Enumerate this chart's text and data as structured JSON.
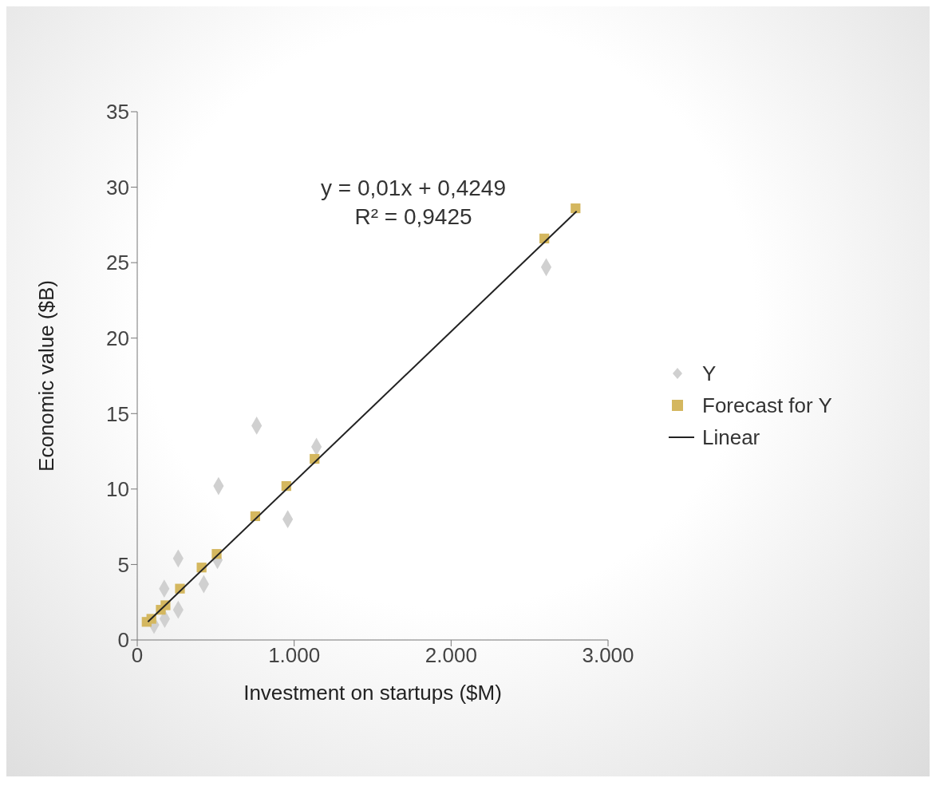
{
  "chart_data": {
    "type": "scatter",
    "xlabel": "Investment on startups ($M)",
    "ylabel": "Economic value ($B)",
    "annotations": [
      "y = 0,01x + 0,4249",
      "R² = 0,9425"
    ],
    "xlim": [
      0,
      3000
    ],
    "ylim": [
      0,
      35
    ],
    "xticks": [
      0,
      {
        "value": 1000,
        "label": "1.000"
      },
      {
        "value": 2000,
        "label": "2.000"
      },
      {
        "value": 3000,
        "label": "3.000"
      }
    ],
    "yticks": [
      0,
      5,
      10,
      15,
      20,
      25,
      30,
      35
    ],
    "grid": false,
    "legend": "right",
    "series": [
      {
        "name": "Y",
        "marker": "diamond",
        "color": "#d0d0d0",
        "x": [
          2606,
          761,
          1142,
          518,
          959,
          261,
          424,
          511,
          261,
          172,
          159,
          107,
          175
        ],
        "values": [
          24.7,
          14.2,
          12.8,
          10.2,
          8.0,
          5.4,
          3.7,
          5.3,
          2.0,
          3.4,
          null,
          1.0,
          1.4
        ]
      },
      {
        "name": "Forecast for Y",
        "marker": "square",
        "color": "#d4b75f",
        "x": [
          2793,
          2594,
          1130,
          950,
          752,
          506,
          410,
          272,
          180,
          150,
          130,
          110,
          90,
          60
        ],
        "values": [
          28.6,
          26.6,
          12.0,
          10.2,
          8.2,
          5.7,
          4.8,
          3.4,
          2.3,
          2.0,
          null,
          null,
          1.4,
          1.2
        ]
      },
      {
        "name": "Linear",
        "type": "line",
        "marker": "none",
        "color": "#222222",
        "x": [
          68,
          2800
        ],
        "values": [
          1.2,
          28.4
        ]
      }
    ]
  }
}
